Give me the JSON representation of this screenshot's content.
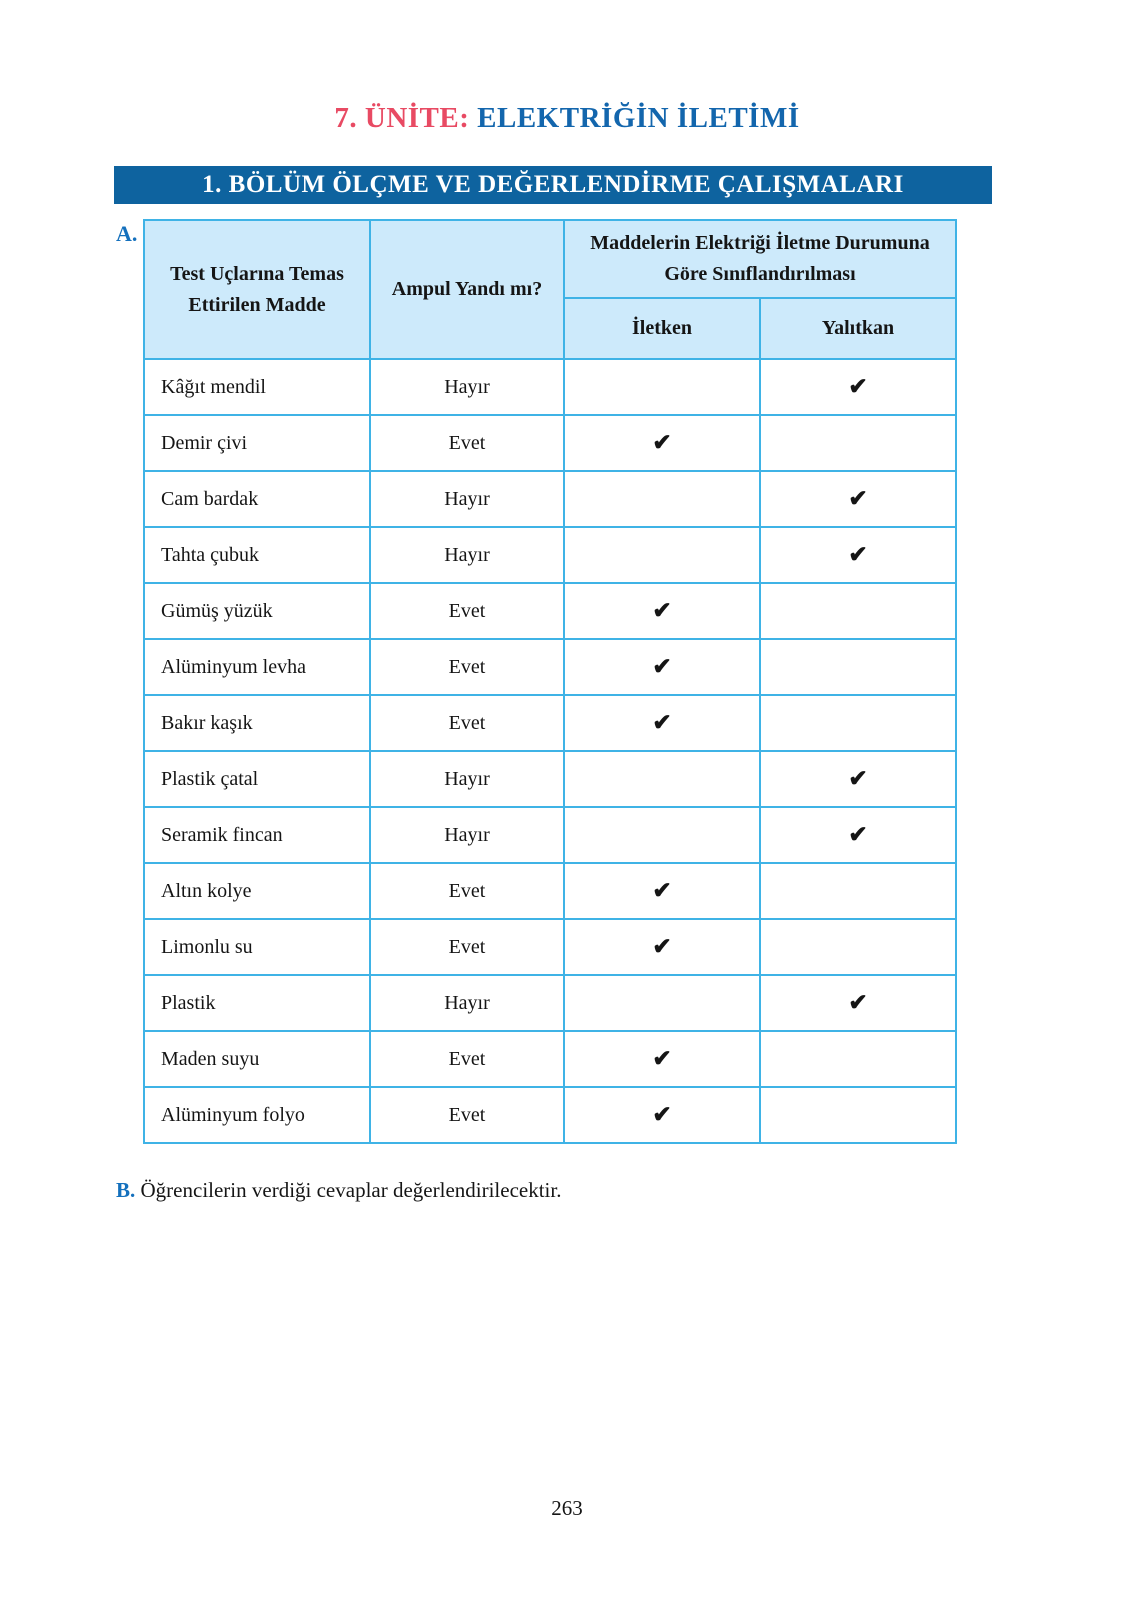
{
  "page": {
    "title": {
      "unit_label": "7. ÜNİTE:",
      "unit_title": "ELEKTRİĞİN İLETİMİ"
    },
    "section_banner": "1. BÖLÜM ÖLÇME VE DEĞERLENDİRME ÇALIŞMALARI",
    "item_a_label": "A.",
    "item_b_label": "B.",
    "item_b_text": "Öğrencilerin verdiği cevaplar değerlendirilecektir.",
    "page_number": "263"
  },
  "table": {
    "headers": {
      "col_material": "Test Uçlarına Temas Ettirilen Madde",
      "col_bulb": "Ampul Yandı mı?",
      "col_classification": "Maddelerin Elektriği İletme Durumuna Göre Sınıflandırılması",
      "sub_conductor": "İletken",
      "sub_insulator": "Yalıtkan"
    },
    "check_glyph": "✔",
    "rows": [
      {
        "material": "Kâğıt mendil",
        "bulb": "Hayır",
        "conductor": false,
        "insulator": true
      },
      {
        "material": "Demir çivi",
        "bulb": "Evet",
        "conductor": true,
        "insulator": false
      },
      {
        "material": "Cam bardak",
        "bulb": "Hayır",
        "conductor": false,
        "insulator": true
      },
      {
        "material": "Tahta çubuk",
        "bulb": "Hayır",
        "conductor": false,
        "insulator": true
      },
      {
        "material": "Gümüş yüzük",
        "bulb": "Evet",
        "conductor": true,
        "insulator": false
      },
      {
        "material": "Alüminyum levha",
        "bulb": "Evet",
        "conductor": true,
        "insulator": false
      },
      {
        "material": "Bakır kaşık",
        "bulb": "Evet",
        "conductor": true,
        "insulator": false
      },
      {
        "material": "Plastik çatal",
        "bulb": "Hayır",
        "conductor": false,
        "insulator": true
      },
      {
        "material": "Seramik fincan",
        "bulb": "Hayır",
        "conductor": false,
        "insulator": true
      },
      {
        "material": "Altın kolye",
        "bulb": "Evet",
        "conductor": true,
        "insulator": false
      },
      {
        "material": "Limonlu su",
        "bulb": "Evet",
        "conductor": true,
        "insulator": false
      },
      {
        "material": "Plastik",
        "bulb": "Hayır",
        "conductor": false,
        "insulator": true
      },
      {
        "material": "Maden suyu",
        "bulb": "Evet",
        "conductor": true,
        "insulator": false
      },
      {
        "material": "Alüminyum folyo",
        "bulb": "Evet",
        "conductor": true,
        "insulator": false
      }
    ]
  },
  "colors": {
    "banner_bg": "#0e639f",
    "title_red": "#e84a63",
    "title_blue": "#1366ad",
    "label_blue": "#1470bd",
    "table_border": "#3fb3e6",
    "header_bg": "#cdeafb"
  }
}
